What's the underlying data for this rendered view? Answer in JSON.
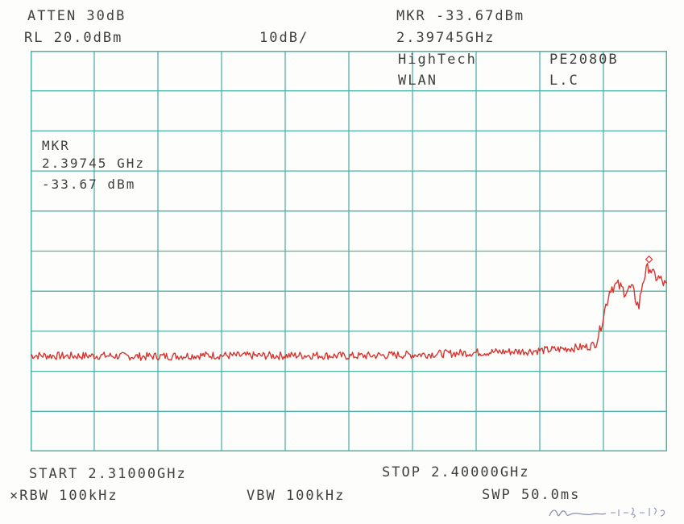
{
  "header": {
    "atten": "ATTEN 30dB",
    "ref_level": "RL 20.0dBm",
    "scale": "10dB/",
    "marker_level": "MKR -33.67dBm",
    "marker_freq": "2.39745GHz",
    "company": "HighTech",
    "model": "PE2080B",
    "band": "WLAN",
    "channel": "L.C"
  },
  "marker_box": {
    "label": "MKR",
    "freq": "2.39745 GHz",
    "level": "-33.67 dBm"
  },
  "footer": {
    "start": "START 2.31000GHz",
    "stop": "STOP 2.40000GHz",
    "rbw": "×RBW 100kHz",
    "vbw": "VBW 100kHz",
    "sweep": "SWP 50.0ms",
    "signature_date": "2001-8-13"
  },
  "colors": {
    "grid": "#4fb3a7",
    "trace": "#d8342f",
    "text": "#404040"
  },
  "chart_data": {
    "type": "line",
    "title": "",
    "xlabel": "",
    "ylabel": "",
    "x_unit": "GHz",
    "y_unit": "dBm",
    "xlim": [
      2.31,
      2.4
    ],
    "ylim": [
      -80,
      20
    ],
    "grid": true,
    "legend": "none",
    "divisions": {
      "x": 10,
      "y": 10
    },
    "marker": {
      "x": 2.39745,
      "y": -33.67
    },
    "series": [
      {
        "x": [
          2.31,
          2.315,
          2.32,
          2.325,
          2.33,
          2.335,
          2.34,
          2.345,
          2.35,
          2.355,
          2.36,
          2.365,
          2.37,
          2.375,
          2.38,
          2.383,
          2.386,
          2.389,
          2.39,
          2.391,
          2.392,
          2.393,
          2.394,
          2.395,
          2.396,
          2.3965,
          2.397,
          2.3975,
          2.398,
          2.399,
          2.4
        ],
        "y": [
          -56.0,
          -56.2,
          -56.1,
          -56.3,
          -56.2,
          -56.0,
          -56.1,
          -56.1,
          -56.0,
          -56.2,
          -56.0,
          -55.8,
          -55.5,
          -55.2,
          -55.0,
          -54.7,
          -54.3,
          -53.8,
          -53.0,
          -46.0,
          -39.0,
          -38.5,
          -40.0,
          -39.2,
          -44.0,
          -38.0,
          -35.2,
          -33.67,
          -36.0,
          -37.0,
          -39.0
        ]
      }
    ]
  }
}
